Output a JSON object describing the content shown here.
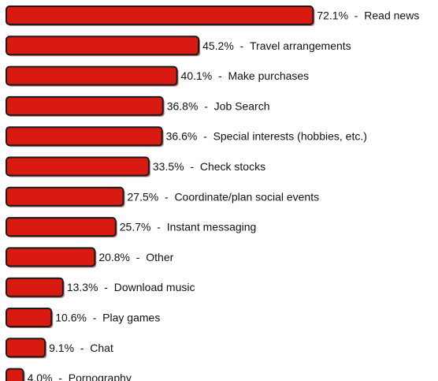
{
  "chart_data": {
    "type": "bar",
    "orientation": "horizontal",
    "categories": [
      "Read news",
      "Travel arrangements",
      "Make purchases",
      "Job Search",
      "Special interests (hobbies, etc.)",
      "Check stocks",
      "Coordinate/plan social events",
      "Instant messaging",
      "Other",
      "Download music",
      "Play games",
      "Chat",
      "Pornography"
    ],
    "values": [
      72.1,
      45.2,
      40.1,
      36.8,
      36.6,
      33.5,
      27.5,
      25.7,
      20.8,
      13.3,
      10.6,
      9.1,
      4.0
    ],
    "value_labels": [
      "72.1%",
      "45.2%",
      "40.1%",
      "36.8%",
      "36.6%",
      "33.5%",
      "27.5%",
      "25.7%",
      "20.8%",
      "13.3%",
      "10.6%",
      "9.1%",
      "4.0%"
    ],
    "separator": " - ",
    "title": "",
    "xlabel": "",
    "ylabel": "",
    "legend": "none",
    "grid": false,
    "bar_color": "#d81a10",
    "outline_color": "#1a1a1a"
  }
}
